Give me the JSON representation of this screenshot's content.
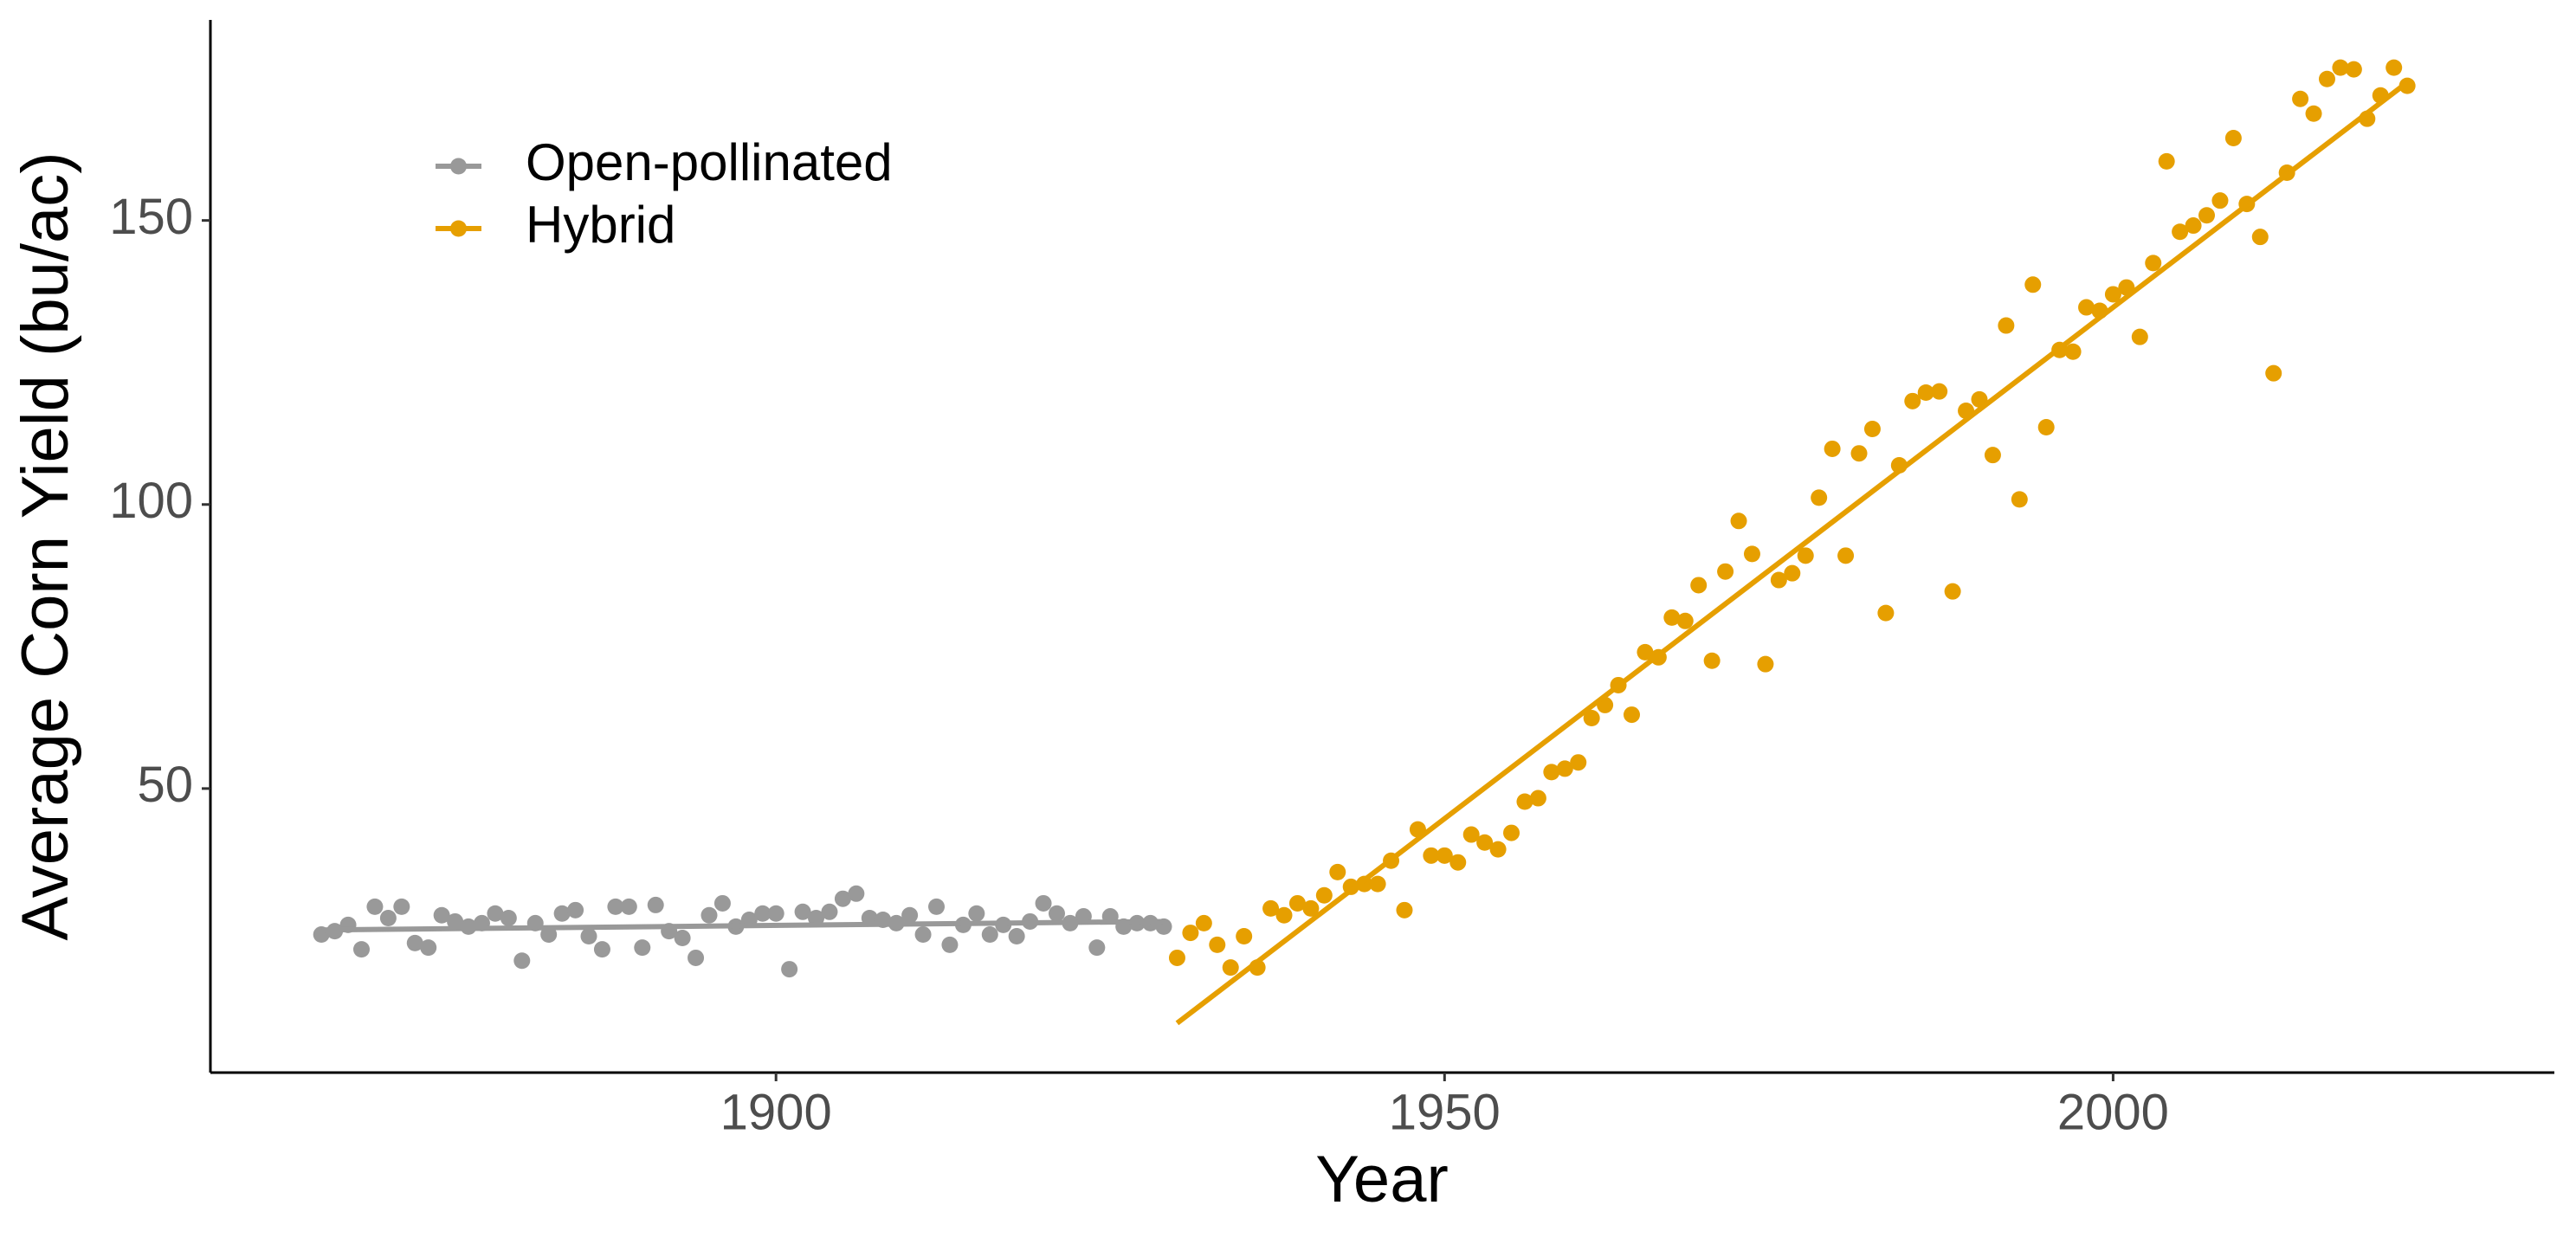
{
  "chart_data": {
    "type": "scatter",
    "x_label": "Year",
    "y_label": "Average Corn Yield (bu/ac)",
    "xlim": [
      1857.7,
      2033
    ],
    "ylim": [
      0,
      185.3
    ],
    "xticks": [
      1900,
      1950,
      2000
    ],
    "yticks": [
      50,
      100,
      150
    ],
    "grid": false,
    "legend": "top-left",
    "series": [
      {
        "name": "Open-pollinated",
        "color": "#999999",
        "x": [
          1866,
          1867,
          1868,
          1869,
          1870,
          1871,
          1872,
          1873,
          1874,
          1875,
          1876,
          1877,
          1878,
          1879,
          1880,
          1881,
          1882,
          1883,
          1884,
          1885,
          1886,
          1887,
          1888,
          1889,
          1890,
          1891,
          1892,
          1893,
          1894,
          1895,
          1896,
          1897,
          1898,
          1899,
          1900,
          1901,
          1902,
          1903,
          1904,
          1905,
          1906,
          1907,
          1908,
          1909,
          1910,
          1911,
          1912,
          1913,
          1914,
          1915,
          1916,
          1917,
          1918,
          1919,
          1920,
          1921,
          1922,
          1923,
          1924,
          1925,
          1926,
          1927,
          1928,
          1929
        ],
        "values": [
          24.3,
          24.9,
          26,
          21.7,
          29.2,
          27.2,
          29.2,
          22.8,
          22,
          27.7,
          26.6,
          25.7,
          26.3,
          28,
          27.2,
          19.7,
          26.3,
          24.3,
          28,
          28.6,
          24,
          21.7,
          29.2,
          29.2,
          22,
          29.5,
          24.9,
          23.7,
          20.2,
          27.7,
          29.8,
          25.7,
          26.9,
          28,
          28,
          18.2,
          28.3,
          27.2,
          28.3,
          30.6,
          31.5,
          27.2,
          26.9,
          26.3,
          27.7,
          24.3,
          29.2,
          22.5,
          26,
          28,
          24.3,
          26,
          24,
          26.6,
          29.8,
          28,
          26.3,
          27.5,
          22,
          27.5,
          25.7,
          26.3,
          26.3,
          25.7
        ],
        "fit": {
          "x": [
            1866,
            1929
          ],
          "values": [
            25.1,
            26.6
          ]
        }
      },
      {
        "name": "Hybrid",
        "color": "#E69F00",
        "x": [
          1930,
          1931,
          1932,
          1933,
          1934,
          1935,
          1936,
          1937,
          1938,
          1939,
          1940,
          1941,
          1942,
          1943,
          1944,
          1945,
          1946,
          1947,
          1948,
          1949,
          1950,
          1951,
          1952,
          1953,
          1954,
          1955,
          1956,
          1957,
          1958,
          1959,
          1960,
          1961,
          1962,
          1963,
          1964,
          1965,
          1966,
          1967,
          1968,
          1969,
          1970,
          1971,
          1972,
          1973,
          1974,
          1975,
          1976,
          1977,
          1978,
          1979,
          1980,
          1981,
          1982,
          1983,
          1984,
          1985,
          1986,
          1987,
          1988,
          1989,
          1990,
          1991,
          1992,
          1993,
          1994,
          1995,
          1996,
          1997,
          1998,
          1999,
          2000,
          2001,
          2002,
          2003,
          2004,
          2005,
          2006,
          2007,
          2008,
          2009,
          2010,
          2011,
          2012,
          2013,
          2014,
          2015,
          2016,
          2017,
          2018,
          2019,
          2020,
          2021,
          2022
        ],
        "values": [
          20.2,
          24.6,
          26.3,
          22.5,
          18.5,
          24,
          18.5,
          28.9,
          27.7,
          29.8,
          28.9,
          31.2,
          35.3,
          32.7,
          33.2,
          33.2,
          37.3,
          28.6,
          42.8,
          38.2,
          38.2,
          37,
          41.9,
          40.5,
          39.3,
          42.2,
          47.7,
          48.3,
          52.9,
          53.5,
          54.6,
          62.4,
          64.7,
          68.2,
          63,
          74,
          73.1,
          80.1,
          79.5,
          85.8,
          72.5,
          88.2,
          97.1,
          91.3,
          71.9,
          86.7,
          87.9,
          91,
          101.2,
          109.8,
          91,
          109,
          113.3,
          80.9,
          106.9,
          118.2,
          119.7,
          119.9,
          84.7,
          116.5,
          118.5,
          108.7,
          131.5,
          100.9,
          138.7,
          113.6,
          127.2,
          126.9,
          134.7,
          134.1,
          137,
          138.2,
          129.5,
          142.5,
          160.4,
          148,
          149.1,
          150.9,
          153.5,
          164.5,
          152.9,
          147.1,
          123.1,
          158.4,
          171.4,
          168.8,
          174.9,
          176.9,
          176.6,
          167.9,
          172,
          176.9,
          173.7
        ],
        "fit": {
          "x": [
            1930,
            2022
          ],
          "values": [
            8.7,
            174.3
          ]
        }
      }
    ]
  }
}
